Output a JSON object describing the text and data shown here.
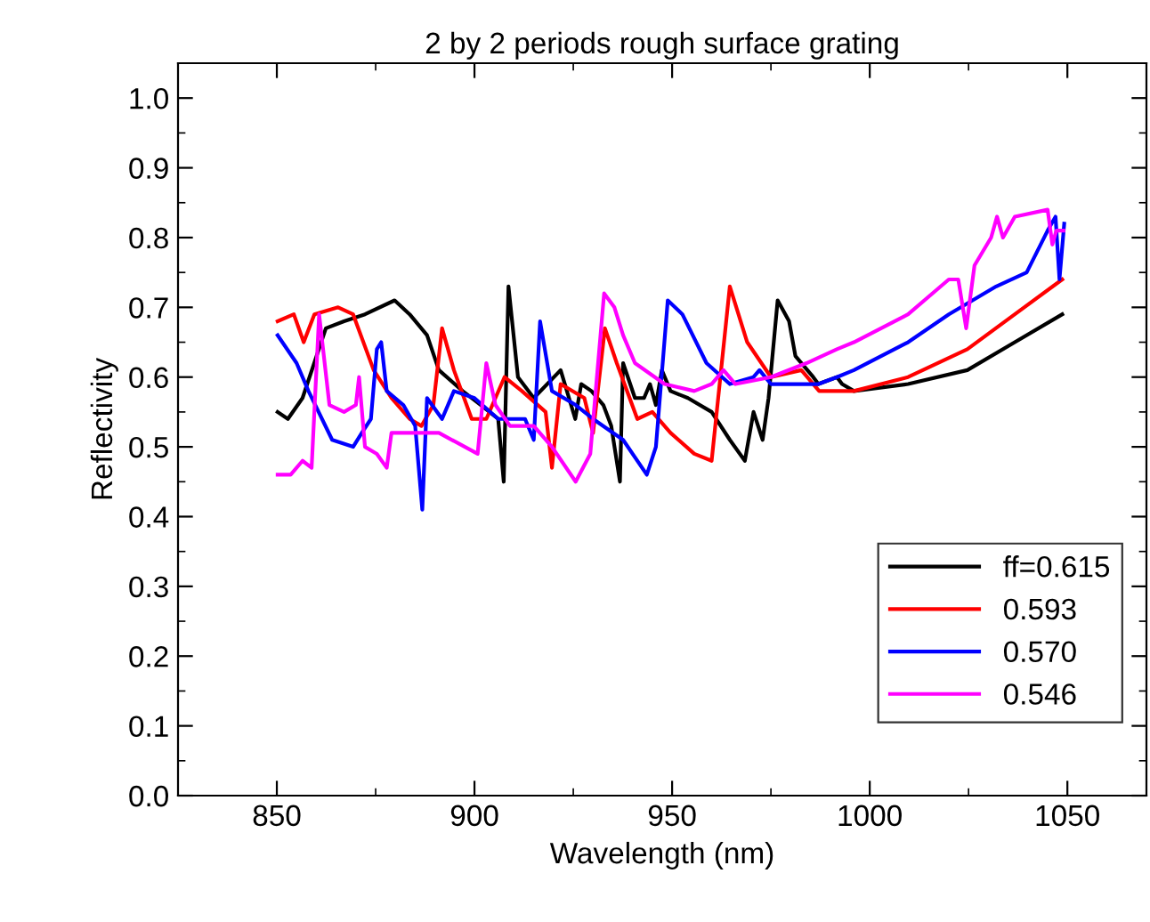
{
  "chart_data": {
    "type": "line",
    "title": "2 by 2 periods rough surface grating",
    "xlabel": "Wavelength (nm)",
    "ylabel": "Reflectivity",
    "xlim": [
      825,
      1070
    ],
    "xticks": [
      850,
      900,
      950,
      1000,
      1050
    ],
    "ylim": [
      0,
      1.05
    ],
    "yticks": [
      {
        "value": 0,
        "label": "0.0"
      },
      0.1,
      0.2,
      0.3,
      0.4,
      0.5,
      0.6,
      0.7,
      0.8,
      0.9,
      {
        "value": 1,
        "label": "1.0"
      }
    ],
    "grid": false,
    "legend": "bottom right",
    "line_style": "solid",
    "series": [
      {
        "name": "ff=0.615",
        "color": "#000000",
        "x": [
          850.2,
          852.8,
          856.5,
          862.4,
          867,
          872.3,
          879.8,
          883.6,
          888,
          891,
          897,
          901.6,
          906,
          907.4,
          908.6,
          911,
          915,
          921.8,
          925.5,
          927,
          929.6,
          932.6,
          934.6,
          936.8,
          937.6,
          940.6,
          942.9,
          944.4,
          945.9,
          947.4,
          949.6,
          954,
          960,
          964.6,
          968.4,
          970.6,
          972.9,
          974.4,
          976.7,
          979.6,
          981.2,
          985.7,
          987,
          991.7,
          993,
          996,
          1009.7,
          1024.7,
          1036.7,
          1048.7
        ],
        "values": [
          0.55,
          0.54,
          0.57,
          0.67,
          0.68,
          0.69,
          0.71,
          0.69,
          0.66,
          0.61,
          0.58,
          0.56,
          0.54,
          0.45,
          0.73,
          0.6,
          0.57,
          0.61,
          0.54,
          0.59,
          0.58,
          0.56,
          0.53,
          0.45,
          0.62,
          0.57,
          0.57,
          0.59,
          0.56,
          0.61,
          0.58,
          0.57,
          0.55,
          0.51,
          0.48,
          0.55,
          0.51,
          0.57,
          0.71,
          0.68,
          0.63,
          0.6,
          0.59,
          0.6,
          0.59,
          0.58,
          0.59,
          0.61,
          0.65,
          0.69
        ]
      },
      {
        "name": "0.593",
        "color": "#ff0000",
        "x": [
          850.2,
          854.3,
          856.8,
          859.5,
          865.5,
          869.3,
          874.5,
          879,
          883.6,
          886.6,
          889.6,
          891.8,
          894.8,
          899.3,
          903,
          907.6,
          912,
          918,
          919.6,
          921.8,
          927.8,
          930,
          933,
          936,
          941.2,
          945,
          949.6,
          955.6,
          960,
          964.6,
          969,
          975,
          982.7,
          987.2,
          996,
          1009.7,
          1024.7,
          1036.7,
          1048.7
        ],
        "values": [
          0.68,
          0.69,
          0.65,
          0.69,
          0.7,
          0.69,
          0.61,
          0.57,
          0.54,
          0.53,
          0.56,
          0.67,
          0.61,
          0.54,
          0.54,
          0.6,
          0.58,
          0.55,
          0.47,
          0.59,
          0.57,
          0.52,
          0.67,
          0.62,
          0.54,
          0.55,
          0.52,
          0.49,
          0.48,
          0.73,
          0.65,
          0.6,
          0.61,
          0.58,
          0.58,
          0.6,
          0.64,
          0.69,
          0.74
        ]
      },
      {
        "name": "0.570",
        "color": "#0000ff",
        "x": [
          850.2,
          855,
          858,
          864,
          869.3,
          871.5,
          873.8,
          875.3,
          876.4,
          877.8,
          882,
          885,
          886.8,
          888,
          891.8,
          894.8,
          900,
          906,
          912.8,
          915,
          916.6,
          919.6,
          925.6,
          930,
          937.6,
          943.6,
          945.9,
          948.9,
          952.6,
          958.7,
          964.6,
          970.6,
          972.1,
          975,
          982.7,
          987,
          991.7,
          996,
          1009.7,
          1020,
          1032,
          1039.7,
          1045,
          1047,
          1048,
          1049.2
        ],
        "values": [
          0.66,
          0.62,
          0.58,
          0.51,
          0.5,
          0.52,
          0.54,
          0.64,
          0.65,
          0.58,
          0.56,
          0.53,
          0.41,
          0.57,
          0.54,
          0.58,
          0.57,
          0.54,
          0.54,
          0.51,
          0.68,
          0.58,
          0.56,
          0.54,
          0.51,
          0.46,
          0.5,
          0.71,
          0.69,
          0.62,
          0.59,
          0.6,
          0.61,
          0.59,
          0.59,
          0.59,
          0.6,
          0.61,
          0.65,
          0.69,
          0.73,
          0.75,
          0.81,
          0.83,
          0.74,
          0.82
        ]
      },
      {
        "name": "0.546",
        "color": "#ff00ff",
        "x": [
          850.2,
          853.5,
          856.5,
          858.8,
          860.7,
          863.3,
          867,
          870,
          870.8,
          872.3,
          875.3,
          877.8,
          879,
          882,
          891,
          900.8,
          903,
          905.3,
          909,
          915,
          919.6,
          925.6,
          929.3,
          932.8,
          935.4,
          937.6,
          940.6,
          948.1,
          955.6,
          960,
          963,
          966,
          975,
          984,
          991.7,
          996,
          1009.7,
          1020,
          1022.4,
          1024.4,
          1026.5,
          1030.7,
          1032.2,
          1033.7,
          1036.7,
          1045,
          1046.2,
          1047.2,
          1049
        ],
        "values": [
          0.46,
          0.46,
          0.48,
          0.47,
          0.69,
          0.56,
          0.55,
          0.56,
          0.6,
          0.5,
          0.49,
          0.47,
          0.52,
          0.52,
          0.52,
          0.49,
          0.62,
          0.56,
          0.53,
          0.53,
          0.5,
          0.45,
          0.49,
          0.72,
          0.7,
          0.66,
          0.62,
          0.59,
          0.58,
          0.59,
          0.61,
          0.59,
          0.6,
          0.62,
          0.64,
          0.65,
          0.69,
          0.74,
          0.74,
          0.67,
          0.76,
          0.8,
          0.83,
          0.8,
          0.83,
          0.84,
          0.79,
          0.81,
          0.81
        ]
      }
    ]
  }
}
